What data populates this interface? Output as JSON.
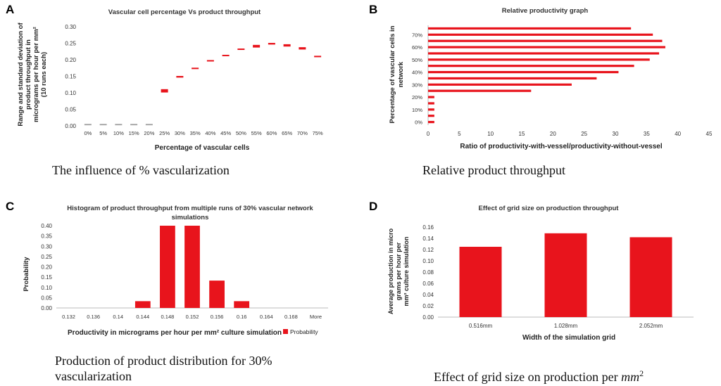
{
  "panels": {
    "a": {
      "letter": "A",
      "caption": "The influence of % vascularization"
    },
    "b": {
      "letter": "B",
      "caption": "Relative product throughput"
    },
    "c": {
      "letter": "C",
      "caption_line1": "Production of product distribution for 30%",
      "caption_line2": "vascularization"
    },
    "d": {
      "letter": "D",
      "caption_prefix": "Effect of grid size on production per ",
      "caption_math": "mm",
      "caption_sup": "2"
    }
  },
  "colors": {
    "bar": "#e8141c",
    "bar_dark": "#c40f16",
    "gray_marker": "#a8a8a8",
    "axis": "#bbbbbb",
    "text": "#222222"
  },
  "chart_data": [
    {
      "id": "a",
      "type": "bar",
      "title": "Vascular cell percentage Vs product throughput",
      "xlabel": "Percentage of vascular cells",
      "ylabel_lines": [
        "Range and standard deviation of",
        "product throughput in",
        "micrograms per hour per mm²",
        "(10 runs each)"
      ],
      "categories": [
        "0%",
        "5%",
        "10%",
        "15%",
        "20%",
        "25%",
        "30%",
        "35%",
        "40%",
        "45%",
        "50%",
        "55%",
        "60%",
        "65%",
        "70%",
        "75%"
      ],
      "low": [
        0.004,
        0.004,
        0.004,
        0.004,
        0.004,
        0.101,
        0.146,
        0.172,
        0.195,
        0.211,
        0.23,
        0.237,
        0.246,
        0.24,
        0.231,
        0.209
      ],
      "high": [
        0.006,
        0.006,
        0.006,
        0.006,
        0.006,
        0.111,
        0.151,
        0.176,
        0.199,
        0.215,
        0.234,
        0.245,
        0.251,
        0.247,
        0.238,
        0.212
      ],
      "yticks": [
        "0.00",
        "0.05",
        "0.10",
        "0.15",
        "0.20",
        "0.25",
        "0.30"
      ],
      "ylim": [
        0,
        0.3
      ]
    },
    {
      "id": "b",
      "type": "bar",
      "orientation": "horizontal",
      "title": "Relative productivity graph",
      "xlabel": "Ratio of productivity-with-vessel/productivity-without-vessel",
      "ylabel_lines": [
        "Percentage of vascular cells in",
        "network"
      ],
      "categories": [
        "0%",
        "5%",
        "10%",
        "15%",
        "20%",
        "25%",
        "30%",
        "35%",
        "40%",
        "45%",
        "50%",
        "55%",
        "60%",
        "65%",
        "70%",
        "75%"
      ],
      "ytick_labels": [
        "0%",
        "10%",
        "20%",
        "30%",
        "40%",
        "50%",
        "60%",
        "70%"
      ],
      "values": [
        1,
        1,
        1,
        1,
        1,
        16.5,
        23,
        27,
        30.5,
        33,
        35.5,
        37,
        38,
        37.5,
        36,
        32.5
      ],
      "xticks": [
        "0",
        "5",
        "10",
        "15",
        "20",
        "25",
        "30",
        "35",
        "40",
        "45"
      ],
      "xlim": [
        0,
        45
      ]
    },
    {
      "id": "c",
      "type": "bar",
      "title_lines": [
        "Histogram of product throughput from multiple runs of 30% vascular network",
        "simulations"
      ],
      "xlabel": "Productivity in micrograms per hour per mm² culture simulation",
      "ylabel": "Probability",
      "categories": [
        "0.132",
        "0.136",
        "0.14",
        "0.144",
        "0.148",
        "0.152",
        "0.156",
        "0.16",
        "0.164",
        "0.168",
        "More"
      ],
      "values": [
        0,
        0,
        0,
        0.033,
        0.4,
        0.4,
        0.133,
        0.033,
        0,
        0,
        0
      ],
      "yticks": [
        "0.00",
        "0.05",
        "0.10",
        "0.15",
        "0.20",
        "0.25",
        "0.30",
        "0.35",
        "0.40"
      ],
      "ylim": [
        0,
        0.4
      ],
      "legend": "Probability"
    },
    {
      "id": "d",
      "type": "bar",
      "title": "Effect of grid size on production throughput",
      "xlabel": "Width of the simulation grid",
      "ylabel_lines": [
        "Average production in micro",
        "grams per hour per",
        "mm² culture simulation"
      ],
      "categories": [
        "0.516mm",
        "1.028mm",
        "2.052mm"
      ],
      "values": [
        0.125,
        0.149,
        0.142
      ],
      "yticks": [
        "0.00",
        "0.02",
        "0.04",
        "0.06",
        "0.08",
        "0.10",
        "0.12",
        "0.14",
        "0.16"
      ],
      "ylim": [
        0,
        0.16
      ]
    }
  ]
}
